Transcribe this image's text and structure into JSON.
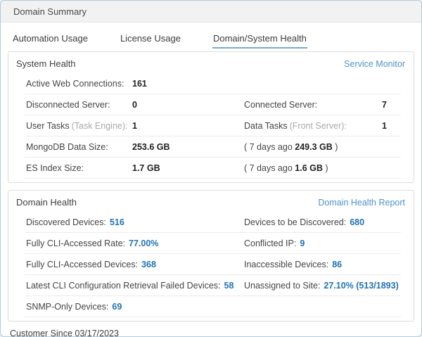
{
  "panel": {
    "title": "Domain Summary",
    "footer": "Customer Since 03/17/2023"
  },
  "tabs": [
    {
      "label": "Automation Usage",
      "active": false
    },
    {
      "label": "License Usage",
      "active": false
    },
    {
      "label": "Domain/System Health",
      "active": true
    }
  ],
  "system_health": {
    "title": "System Health",
    "link": "Service Monitor",
    "rows": [
      {
        "label": "Active Web Connections:",
        "value": "161"
      },
      {
        "label": "Disconnected Server:",
        "value": "0",
        "label2": "Connected Server:",
        "value2": "7"
      },
      {
        "label": "User Tasks",
        "label_sub": "(Task Engine):",
        "value": "1",
        "label2": "Data Tasks",
        "label2_sub": "(Front Server):",
        "value2": "1"
      },
      {
        "label": "MongoDB Data Size:",
        "value": "253.6 GB",
        "history_prefix": "( 7 days ago ",
        "history_value": "249.3 GB",
        "history_suffix": " )"
      },
      {
        "label": "ES Index Size:",
        "value": "1.7 GB",
        "history_prefix": "( 7 days ago ",
        "history_value": "1.6 GB",
        "history_suffix": " )"
      }
    ]
  },
  "domain_health": {
    "title": "Domain Health",
    "link": "Domain Health Report",
    "rows": [
      {
        "left_label": "Discovered Devices:",
        "left_value": "516",
        "right_label": "Devices to be Discovered:",
        "right_value": "680"
      },
      {
        "left_label": "Fully CLI-Accessed Rate:",
        "left_value": "77.00%",
        "right_label": "Conflicted IP:",
        "right_value": "9"
      },
      {
        "left_label": "Fully CLI-Accessed Devices:",
        "left_value": "368",
        "right_label": "Inaccessible Devices:",
        "right_value": "86"
      },
      {
        "left_label": "Latest CLI Configuration Retrieval Failed Devices:",
        "left_value": "58",
        "right_label": "Unassigned to Site:",
        "right_value": "27.10% (513/1893)"
      },
      {
        "left_label": "SNMP-Only Devices:",
        "left_value": "69"
      }
    ]
  },
  "colors": {
    "link_blue": "#4e92c8",
    "value_blue": "#2173b4",
    "active_tab_underline": "#72add4",
    "header_background": "#f2f2f2",
    "panel_border": "#aecbdd"
  }
}
